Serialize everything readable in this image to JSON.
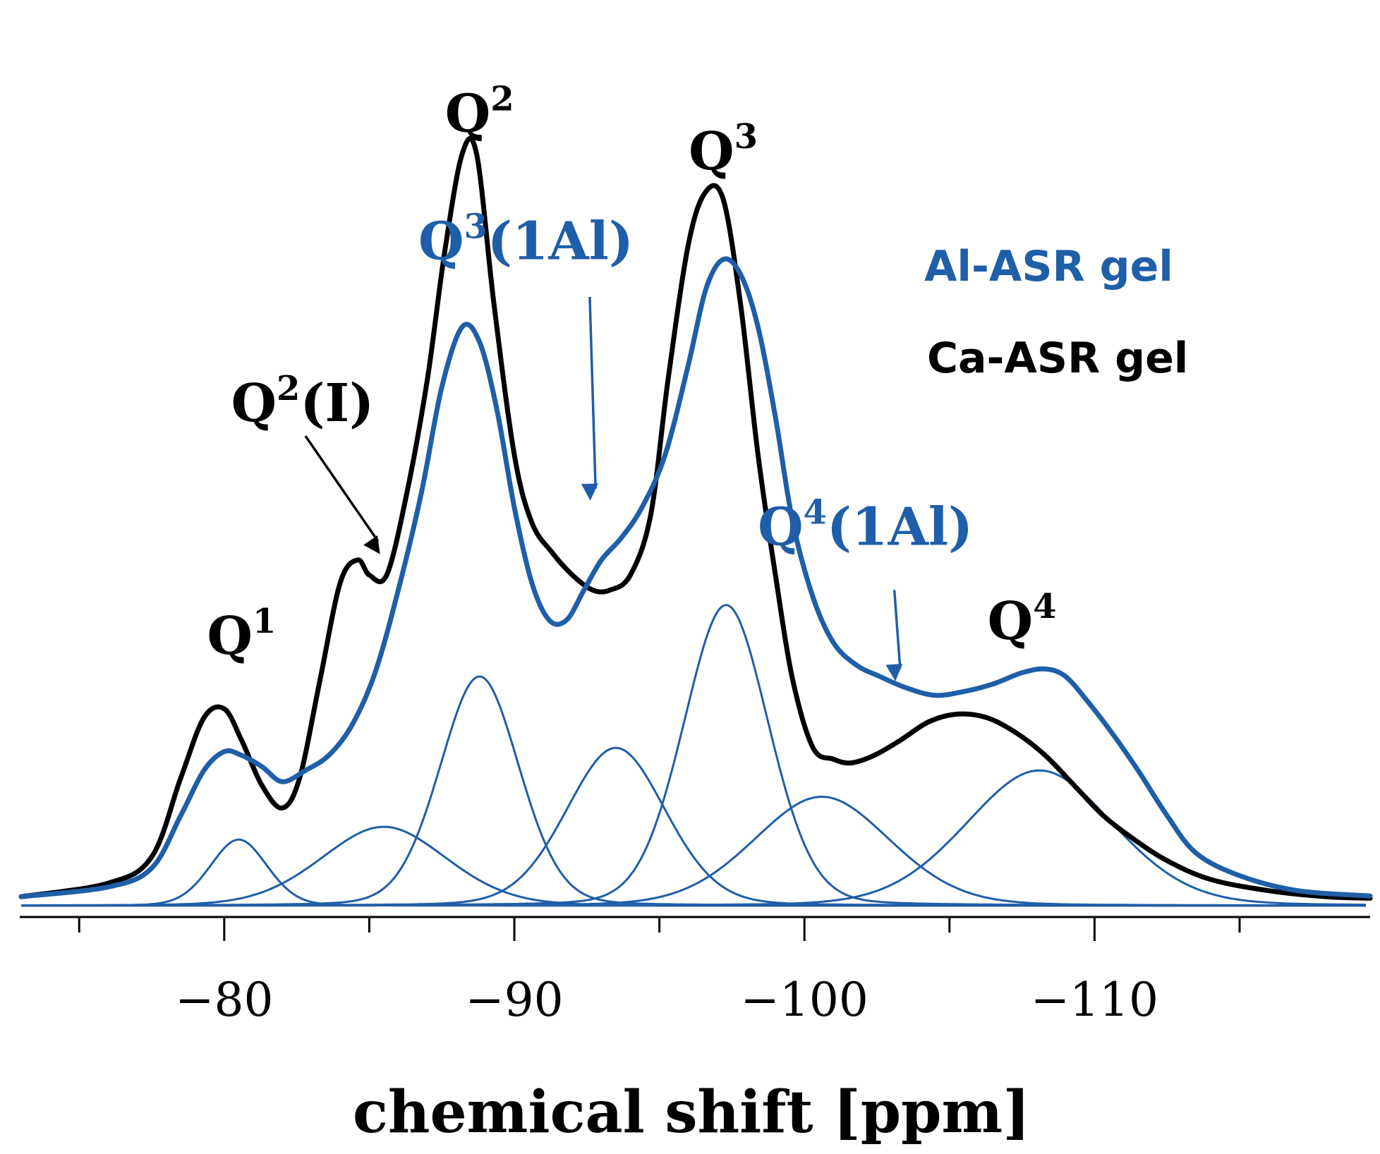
{
  "chart_data": {
    "type": "line",
    "title": "",
    "xlabel": "chemical shift [ppm]",
    "ylabel": "",
    "xlim": [
      -73,
      -119.5
    ],
    "ylim": [
      -0.015,
      1.13
    ],
    "x_ticks": [
      -75,
      -80,
      -85,
      -90,
      -95,
      -100,
      -105,
      -110,
      -115
    ],
    "x_tick_labels": [
      {
        "value": -80,
        "label": "−80"
      },
      {
        "value": -90,
        "label": "−90"
      },
      {
        "value": -100,
        "label": "−100"
      },
      {
        "value": -110,
        "label": "−110"
      }
    ],
    "legend": {
      "position": "right",
      "entries": [
        {
          "name": "Al-ASR gel",
          "color": "#1f5ea8"
        },
        {
          "name": "Ca-ASR gel",
          "color": "#000000"
        }
      ]
    },
    "colors": {
      "al": "#1f5ea8",
      "ca": "#000000"
    },
    "series": [
      {
        "name": "Ca-ASR gel",
        "color": "#000000",
        "x": [
          -73,
          -76,
          -77.5,
          -78.5,
          -79.3,
          -80.0,
          -80.6,
          -81.3,
          -82.0,
          -82.6,
          -83.3,
          -84.0,
          -84.6,
          -85.0,
          -85.6,
          -86.3,
          -87.0,
          -87.6,
          -88.2,
          -88.7,
          -89.3,
          -90.0,
          -90.6,
          -91.3,
          -92.0,
          -92.7,
          -93.3,
          -94.0,
          -94.7,
          -95.3,
          -96.0,
          -96.6,
          -97.2,
          -97.8,
          -98.4,
          -99.0,
          -99.6,
          -100.3,
          -101.0,
          -101.6,
          -102.4,
          -103.3,
          -104.3,
          -105.3,
          -106.3,
          -107.3,
          -108.3,
          -109.3,
          -110.3,
          -111.3,
          -112.5,
          -114,
          -116,
          -118,
          -119.5
        ],
        "y": [
          0.012,
          0.03,
          0.065,
          0.17,
          0.25,
          0.262,
          0.22,
          0.16,
          0.13,
          0.17,
          0.3,
          0.43,
          0.46,
          0.44,
          0.44,
          0.55,
          0.7,
          0.87,
          1.0,
          1.0,
          0.8,
          0.6,
          0.51,
          0.47,
          0.44,
          0.42,
          0.42,
          0.44,
          0.52,
          0.7,
          0.88,
          0.95,
          0.94,
          0.8,
          0.6,
          0.44,
          0.3,
          0.21,
          0.195,
          0.19,
          0.2,
          0.22,
          0.245,
          0.255,
          0.25,
          0.23,
          0.2,
          0.16,
          0.12,
          0.09,
          0.06,
          0.035,
          0.02,
          0.012,
          0.01
        ],
        "components": []
      },
      {
        "name": "Al-ASR gel",
        "color": "#1f5ea8",
        "x": [
          -73,
          -76,
          -77.5,
          -78.5,
          -79.3,
          -80.0,
          -80.6,
          -81.3,
          -82.0,
          -82.8,
          -83.6,
          -84.4,
          -85.2,
          -86.0,
          -86.8,
          -87.5,
          -88.2,
          -88.8,
          -89.4,
          -90.0,
          -90.6,
          -91.2,
          -91.8,
          -92.4,
          -93.0,
          -93.7,
          -94.4,
          -95.2,
          -96.0,
          -96.6,
          -97.2,
          -97.8,
          -98.4,
          -99.0,
          -99.6,
          -100.3,
          -101.0,
          -101.8,
          -102.6,
          -103.5,
          -104.5,
          -105.5,
          -106.5,
          -107.5,
          -108.3,
          -109.0,
          -109.8,
          -110.6,
          -111.5,
          -112.5,
          -113.5,
          -115,
          -117,
          -119.5
        ],
        "y": [
          0.012,
          0.025,
          0.05,
          0.12,
          0.18,
          0.205,
          0.2,
          0.185,
          0.165,
          0.18,
          0.2,
          0.24,
          0.31,
          0.42,
          0.55,
          0.69,
          0.77,
          0.75,
          0.66,
          0.53,
          0.43,
          0.38,
          0.38,
          0.42,
          0.46,
          0.49,
          0.53,
          0.6,
          0.72,
          0.82,
          0.86,
          0.84,
          0.77,
          0.65,
          0.51,
          0.41,
          0.35,
          0.32,
          0.305,
          0.29,
          0.28,
          0.285,
          0.295,
          0.31,
          0.315,
          0.305,
          0.27,
          0.23,
          0.18,
          0.12,
          0.07,
          0.04,
          0.02,
          0.013
        ],
        "components": [
          {
            "name": "Q1",
            "center": -80.5,
            "height": 0.088,
            "width": 1.0
          },
          {
            "name": "Q2(I)",
            "center": -85.5,
            "height": 0.105,
            "width": 2.2
          },
          {
            "name": "Q2",
            "center": -88.8,
            "height": 0.305,
            "width": 1.4
          },
          {
            "name": "Q3(1Al)",
            "center": -93.5,
            "height": 0.21,
            "width": 1.75
          },
          {
            "name": "Q3",
            "center": -97.3,
            "height": 0.4,
            "width": 1.5
          },
          {
            "name": "Q4(1Al)",
            "center": -100.6,
            "height": 0.145,
            "width": 2.4
          },
          {
            "name": "Q4",
            "center": -108.1,
            "height": 0.18,
            "width": 2.6
          }
        ]
      }
    ],
    "annotations": [
      {
        "id": "q1",
        "base": "Q",
        "sup": "1",
        "suffix": "",
        "color": "#000000",
        "x": -80.6,
        "y": 0.335
      },
      {
        "id": "q2",
        "base": "Q",
        "sup": "2",
        "suffix": "",
        "color": "#000000",
        "x": -88.8,
        "y": 1.03
      },
      {
        "id": "q2i",
        "base": "Q",
        "sup": "2",
        "suffix": "(I)",
        "color": "#000000",
        "x": -82.7,
        "y": 0.645,
        "arrow_from": {
          "x": -82.8,
          "y": 0.625
        },
        "arrow_to": {
          "x": -85.3,
          "y": 0.485
        }
      },
      {
        "id": "q3-1al",
        "base": "Q",
        "sup": "3",
        "suffix": "(1Al)",
        "color": "#1f5ea8",
        "x": -90.4,
        "y": 0.86,
        "arrow_from": {
          "x": -92.6,
          "y": 0.81
        },
        "arrow_to": {
          "x": -92.8,
          "y": 0.555
        }
      },
      {
        "id": "q3",
        "base": "Q",
        "sup": "3",
        "suffix": "",
        "color": "#000000",
        "x": -97.2,
        "y": 0.98
      },
      {
        "id": "q4-1al",
        "base": "Q",
        "sup": "4",
        "suffix": "(1Al)",
        "color": "#1f5ea8",
        "x": -102.1,
        "y": 0.48,
        "arrow_from": {
          "x": -103.1,
          "y": 0.42
        },
        "arrow_to": {
          "x": -103.3,
          "y": 0.315
        }
      },
      {
        "id": "q4",
        "base": "Q",
        "sup": "4",
        "suffix": "",
        "color": "#000000",
        "x": -107.5,
        "y": 0.355
      }
    ]
  }
}
